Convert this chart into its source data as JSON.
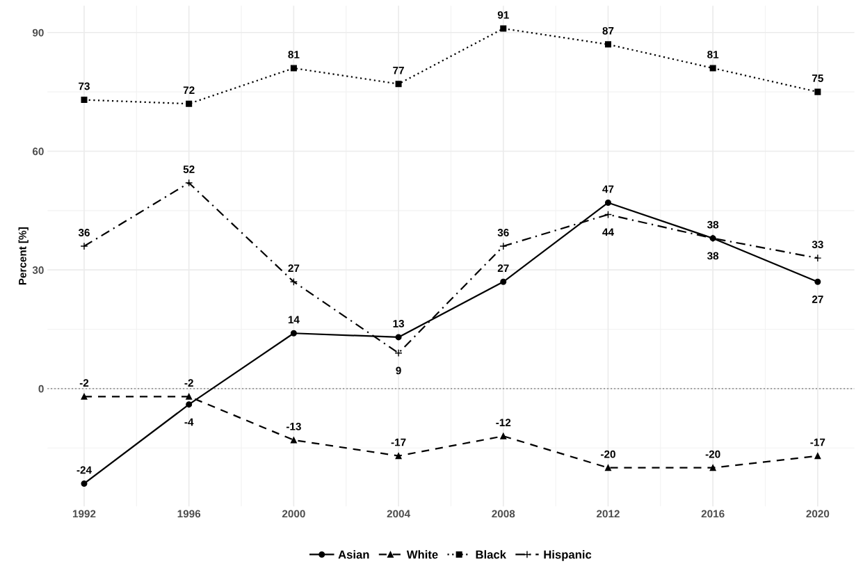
{
  "chart_data": {
    "type": "line",
    "ylabel": "Percent [%]",
    "x": [
      1992,
      1996,
      2000,
      2004,
      2008,
      2012,
      2016,
      2020
    ],
    "xlim": [
      1990.6,
      2021.4
    ],
    "xticks": [
      1992,
      1996,
      2000,
      2004,
      2008,
      2012,
      2016,
      2020
    ],
    "ylim": [
      -29.75,
      96.75
    ],
    "yticks": [
      0,
      30,
      60,
      90
    ],
    "series": [
      {
        "name": "Asian",
        "color": "#000000",
        "marker": "circle",
        "line_style": "solid",
        "values": [
          -24,
          -4,
          14,
          13,
          27,
          47,
          38,
          27
        ]
      },
      {
        "name": "White",
        "color": "#000000",
        "marker": "triangle",
        "line_style": "dashed",
        "values": [
          -2,
          -2,
          -13,
          -17,
          -12,
          -20,
          -20,
          -17
        ]
      },
      {
        "name": "Black",
        "color": "#000000",
        "marker": "square",
        "line_style": "dotted",
        "values": [
          73,
          72,
          81,
          77,
          91,
          87,
          81,
          75
        ]
      },
      {
        "name": "Hispanic",
        "color": "#000000",
        "marker": "cross",
        "line_style": "dashdot",
        "values": [
          36,
          52,
          27,
          9,
          36,
          44,
          38,
          33
        ]
      }
    ],
    "ref_lines": [
      {
        "axis": "y",
        "value": 0,
        "label": null,
        "color": "#888888",
        "line_style": "dotted"
      }
    ],
    "data_labels": true,
    "grid": true,
    "legend": "bottom"
  }
}
